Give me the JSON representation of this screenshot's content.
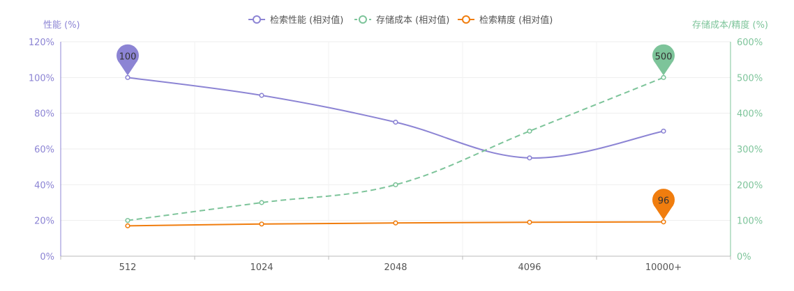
{
  "chart_data": {
    "type": "line",
    "categories": [
      "512",
      "1024",
      "2048",
      "4096",
      "10000+"
    ],
    "left_axis": {
      "title": "性能 (%)",
      "ticks": [
        "0%",
        "20%",
        "40%",
        "60%",
        "80%",
        "100%",
        "120%"
      ],
      "range": [
        0,
        120
      ]
    },
    "right_axis": {
      "title": "存储成本/精度 (%)",
      "ticks": [
        "0%",
        "100%",
        "200%",
        "300%",
        "400%",
        "500%",
        "600%"
      ],
      "range": [
        0,
        600
      ]
    },
    "legend": [
      "检索性能 (相对值)",
      "存储成本 (相对值)",
      "检索精度 (相对值)"
    ],
    "legend_position": "top-center",
    "grid": true,
    "series": [
      {
        "name": "检索性能 (相对值)",
        "axis": "left",
        "values": [
          100,
          90,
          75,
          55,
          70
        ],
        "color": "#8c84d4",
        "dashed": false,
        "smooth": true,
        "marker_label": {
          "index": 0,
          "text": "100"
        }
      },
      {
        "name": "存储成本 (相对值)",
        "axis": "right",
        "values": [
          100,
          150,
          200,
          350,
          500
        ],
        "color": "#7dc49a",
        "dashed": true,
        "smooth": true,
        "marker_label": {
          "index": 4,
          "text": "500"
        }
      },
      {
        "name": "检索精度 (相对值)",
        "axis": "right",
        "values": [
          85,
          90,
          93,
          95,
          96
        ],
        "color": "#f07d0e",
        "dashed": false,
        "smooth": false,
        "marker_label": {
          "index": 4,
          "text": "96"
        }
      }
    ]
  }
}
